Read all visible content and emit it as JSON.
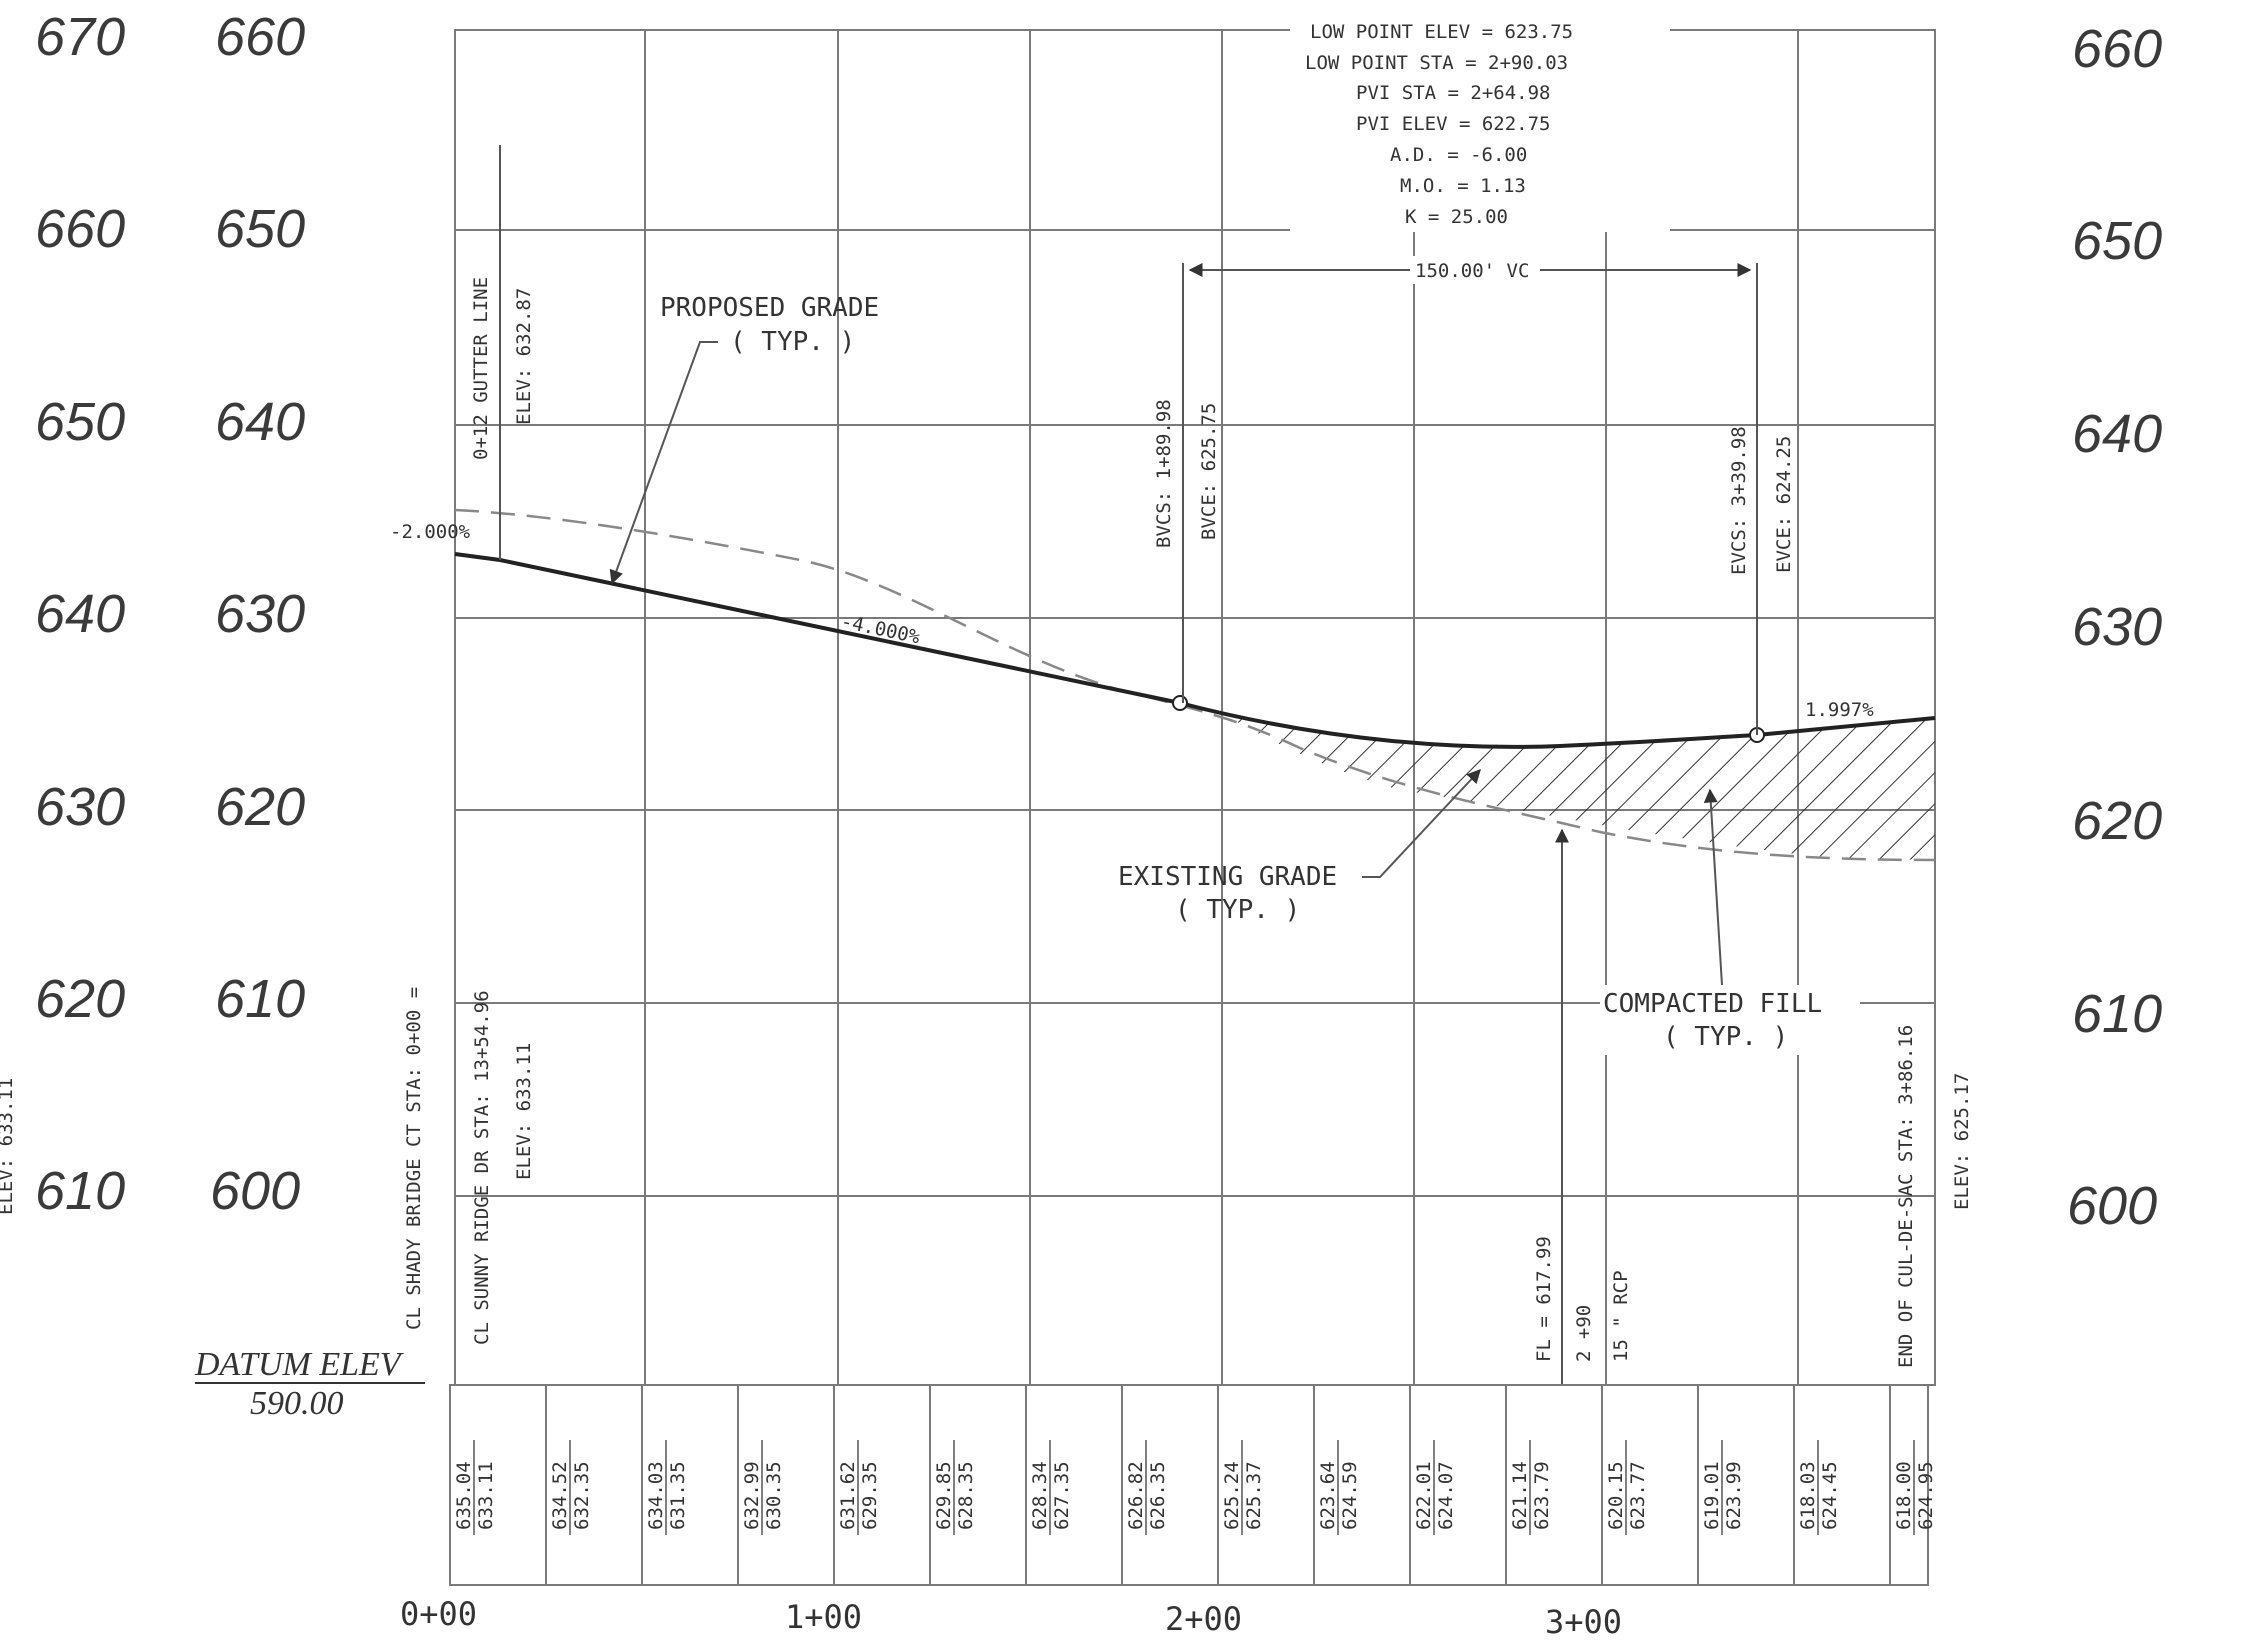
{
  "outer_left_elevations": [
    "670",
    "660",
    "650",
    "640",
    "630",
    "620",
    "610"
  ],
  "left_elevations": [
    "660",
    "650",
    "640",
    "630",
    "620",
    "610",
    "600"
  ],
  "right_elevations": [
    "660",
    "650",
    "640",
    "630",
    "620",
    "610",
    "600"
  ],
  "station_labels": [
    "0+00",
    "1+00",
    "2+00",
    "3+00"
  ],
  "datum": {
    "label": "DATUM ELEV",
    "value": "590.00"
  },
  "curve_data": {
    "low_point_elev": "LOW POINT ELEV = 623.75",
    "low_point_sta": "LOW POINT STA = 2+90.03",
    "pvi_sta": "PVI STA = 2+64.98",
    "pvi_elev": "PVI ELEV = 622.75",
    "ad": "A.D. = -6.00",
    "mo": "M.O. = 1.13",
    "k": "K = 25.00"
  },
  "vertical_curve_length": "150.00' VC",
  "grades": {
    "g1": "-2.000%",
    "g2": "-4.000%",
    "g3": "1.997%"
  },
  "callouts": {
    "proposed_grade": "PROPOSED GRADE",
    "proposed_typ": "( TYP. )",
    "existing_grade": "EXISTING GRADE",
    "existing_typ": "( TYP. )",
    "compacted_fill": "COMPACTED FILL",
    "compacted_typ": "( TYP. )"
  },
  "vertical_notes": {
    "gutter_line": "0+12 GUTTER LINE",
    "gutter_elev": "ELEV: 632.87",
    "bvcs": "BVCS: 1+89.98",
    "bvce": "BVCE: 625.75",
    "evcs": "EVCS: 3+39.98",
    "evce": "EVCE: 624.25",
    "shady_bridge": "CL SHADY BRIDGE CT STA: 0+00 =",
    "sunny_ridge": "CL SUNNY RIDGE DR STA: 13+54.96",
    "sunny_elev": "ELEV: 633.11",
    "fl": "FL = 617.99",
    "pipe_sta": "2 +90",
    "pipe_size": "15 \" RCP",
    "end_cul": "END OF CUL-DE-SAC STA: 3+86.16",
    "end_elev": "ELEV: 625.17",
    "left_edge_elev": "ELEV: 633.11"
  },
  "profile_table": [
    {
      "existing": "635.04",
      "proposed": "633.11"
    },
    {
      "existing": "634.52",
      "proposed": "632.35"
    },
    {
      "existing": "634.03",
      "proposed": "631.35"
    },
    {
      "existing": "632.99",
      "proposed": "630.35"
    },
    {
      "existing": "631.62",
      "proposed": "629.35"
    },
    {
      "existing": "629.85",
      "proposed": "628.35"
    },
    {
      "existing": "628.34",
      "proposed": "627.35"
    },
    {
      "existing": "626.82",
      "proposed": "626.35"
    },
    {
      "existing": "625.24",
      "proposed": "625.37"
    },
    {
      "existing": "623.64",
      "proposed": "624.59"
    },
    {
      "existing": "622.01",
      "proposed": "624.07"
    },
    {
      "existing": "621.14",
      "proposed": "623.79"
    },
    {
      "existing": "620.15",
      "proposed": "623.77"
    },
    {
      "existing": "619.01",
      "proposed": "623.99"
    },
    {
      "existing": "618.03",
      "proposed": "624.45"
    },
    {
      "existing": "618.00",
      "proposed": "624.95"
    }
  ]
}
